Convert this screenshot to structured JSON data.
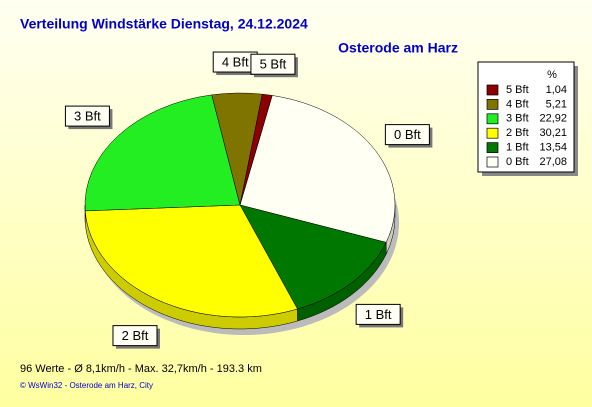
{
  "chart_data": {
    "type": "pie",
    "title": "Verteilung Windstärke  Dienstag, 24.12.2024",
    "subtitle": "Osterode am Harz",
    "legend_header": "%",
    "categories": [
      "0 Bft",
      "1 Bft",
      "2 Bft",
      "3 Bft",
      "4 Bft",
      "5 Bft"
    ],
    "values": [
      27.08,
      13.54,
      30.21,
      22.92,
      5.21,
      1.04
    ],
    "value_labels": [
      "27,08",
      "13,54",
      "30,21",
      "22,92",
      "5,21",
      "1,04"
    ],
    "colors": [
      "#fffff4",
      "#007800",
      "#ffff00",
      "#22ee22",
      "#807400",
      "#8b0000"
    ],
    "legend": "upper right",
    "footer": "96 Werte   -   Ø 8,1km/h  -  Max. 32,7km/h   -   193.3 km",
    "credit": "© WsWin32  -  Osterode am Harz, City"
  }
}
